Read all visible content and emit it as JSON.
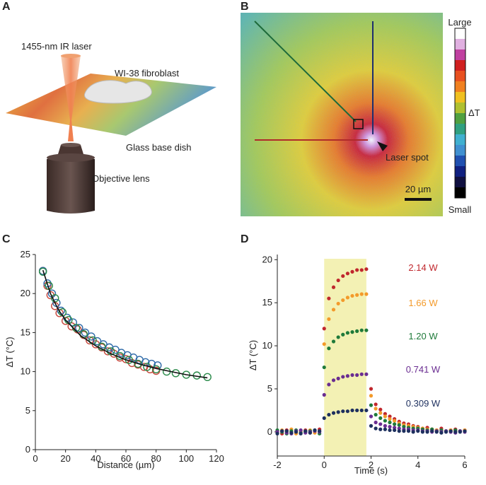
{
  "panel_labels": [
    "A",
    "B",
    "C",
    "D"
  ],
  "panel_a": {
    "laser": "1455-nm IR laser",
    "cell": "WI-38 fibroblast",
    "dish": "Glass base dish",
    "lens": "Objective lens"
  },
  "panel_b": {
    "top": "Large",
    "bottom": "Small",
    "colorbar_label": "ΔT",
    "spot": "Laser spot",
    "scale": "20 µm"
  },
  "chart_data": [
    {
      "type": "scatter",
      "xlabel": "Distance (µm)",
      "ylabel": "ΔT (°C)",
      "xlim": [
        0,
        120
      ],
      "ylim": [
        0,
        25
      ],
      "xticks": [
        0,
        20,
        40,
        60,
        80,
        100,
        120
      ],
      "yticks": [
        0,
        5,
        10,
        15,
        20,
        25
      ],
      "series": [
        {
          "color": "#c8453a",
          "marker": "circle",
          "x": [
            5,
            8,
            10,
            13,
            16,
            20,
            24,
            28,
            32,
            36,
            40,
            44,
            48,
            52,
            56,
            60,
            64,
            68,
            72,
            76,
            80
          ],
          "values": [
            22.9,
            21,
            19.8,
            18.4,
            17.5,
            16.5,
            15.8,
            15.4,
            14.7,
            14,
            13.5,
            13.1,
            12.6,
            12.3,
            11.8,
            11.6,
            11.1,
            10.9,
            10.6,
            10.3,
            10.1
          ]
        },
        {
          "color": "#2e6aa8",
          "marker": "circle",
          "x": [
            5,
            8,
            11,
            14,
            17,
            21,
            25,
            29,
            33,
            37,
            41,
            45,
            49,
            53,
            57,
            61,
            65,
            69,
            73,
            77,
            81
          ],
          "values": [
            22.9,
            21.3,
            20,
            18.8,
            17.8,
            16.9,
            16.3,
            15.6,
            15,
            14.5,
            13.9,
            13.5,
            13.1,
            12.8,
            12.4,
            12.1,
            11.8,
            11.5,
            11.2,
            11,
            10.8
          ]
        },
        {
          "color": "#2a8a4a",
          "marker": "circle",
          "x": [
            5,
            9,
            13,
            18,
            22,
            27,
            32,
            38,
            44,
            50,
            56,
            62,
            68,
            74,
            80,
            87,
            93,
            100,
            107,
            114
          ],
          "values": [
            22.8,
            21,
            19.4,
            17.6,
            16.6,
            15.6,
            14.8,
            14,
            13.2,
            12.6,
            12,
            11.5,
            11,
            10.6,
            10.3,
            10,
            9.8,
            9.6,
            9.5,
            9.3
          ]
        },
        {
          "color": "#111111",
          "marker": "line",
          "x": [
            5,
            10,
            15,
            20,
            30,
            40,
            50,
            60,
            70,
            80,
            90,
            100,
            114
          ],
          "values": [
            23,
            20,
            18,
            16.6,
            14.6,
            13.3,
            12.3,
            11.5,
            10.9,
            10.4,
            10,
            9.6,
            9.2
          ]
        }
      ]
    },
    {
      "type": "scatter",
      "xlabel": "Time (s)",
      "ylabel": "ΔT (°C)",
      "xlim": [
        -2,
        6
      ],
      "ylim": [
        -2.8,
        20.6
      ],
      "xticks": [
        -2,
        0,
        2,
        4,
        6
      ],
      "yticks": [
        0,
        5,
        10,
        15,
        20
      ],
      "highlight_x": [
        0,
        1.8
      ],
      "highlight_color": "#f3f1b4",
      "x": [
        -2,
        -1.8,
        -1.6,
        -1.4,
        -1.2,
        -1,
        -0.8,
        -0.6,
        -0.4,
        -0.2,
        0,
        0.2,
        0.4,
        0.6,
        0.8,
        1,
        1.2,
        1.4,
        1.6,
        1.8,
        2,
        2.2,
        2.4,
        2.6,
        2.8,
        3,
        3.2,
        3.4,
        3.6,
        3.8,
        4,
        4.2,
        4.4,
        4.6,
        4.8,
        5,
        5.2,
        5.4,
        5.6,
        5.8,
        6
      ],
      "series": [
        {
          "name": "2.14 W",
          "color": "#c0272d",
          "marker": "dot",
          "values": [
            0.1,
            -0.2,
            0.2,
            0,
            -0.1,
            0.1,
            0.2,
            -0.1,
            0,
            0.3,
            12,
            15.5,
            16.8,
            17.6,
            18.1,
            18.4,
            18.6,
            18.8,
            18.8,
            18.9,
            5.0,
            3.2,
            2.6,
            2.1,
            1.8,
            1.5,
            1.2,
            1.0,
            0.9,
            0.7,
            0.6,
            0.4,
            0.5,
            0.3,
            0.2,
            0.4,
            0.1,
            0.2,
            0.3,
            0.1,
            0.2
          ]
        },
        {
          "name": "1.66 W",
          "color": "#f39a2a",
          "marker": "dot",
          "values": [
            -0.1,
            0.2,
            0,
            0.3,
            -0.2,
            0,
            0.1,
            0.2,
            -0.1,
            0.1,
            10.2,
            13.1,
            14.2,
            14.9,
            15.3,
            15.6,
            15.8,
            15.9,
            16.0,
            16.0,
            4.2,
            2.7,
            2.2,
            1.8,
            1.5,
            1.3,
            1.0,
            0.8,
            0.7,
            0.6,
            0.5,
            0.4,
            0.3,
            0.3,
            0.2,
            0.2,
            0.1,
            0.2,
            0.1,
            0.1,
            0.2
          ]
        },
        {
          "name": "1.20 W",
          "color": "#1f7a3a",
          "marker": "dot",
          "values": [
            0.2,
            0,
            -0.2,
            0.1,
            0.2,
            -0.1,
            0,
            0.1,
            0.2,
            -0.2,
            7.5,
            9.7,
            10.5,
            11.0,
            11.3,
            11.5,
            11.6,
            11.7,
            11.8,
            11.8,
            3.1,
            2.0,
            1.6,
            1.3,
            1.1,
            0.9,
            0.8,
            0.6,
            0.5,
            0.4,
            0.4,
            0.3,
            0.2,
            0.3,
            0.1,
            0.2,
            0.1,
            0,
            0.2,
            0.1,
            0
          ]
        },
        {
          "name": "0.741 W",
          "color": "#6a2d91",
          "marker": "dot",
          "values": [
            0,
            0.1,
            -0.1,
            -0.2,
            0.1,
            0.2,
            -0.1,
            0,
            0.1,
            0,
            4.3,
            5.5,
            6.0,
            6.2,
            6.4,
            6.5,
            6.6,
            6.6,
            6.7,
            6.7,
            1.8,
            1.1,
            0.9,
            0.7,
            0.6,
            0.5,
            0.4,
            0.3,
            0.3,
            0.2,
            0.2,
            0.1,
            0.1,
            0,
            0.1,
            0,
            0.1,
            0,
            -0.1,
            0.1,
            0
          ]
        },
        {
          "name": "0.309 W",
          "color": "#1d2f5e",
          "marker": "dot",
          "values": [
            -0.2,
            0.1,
            0.1,
            -0.1,
            0,
            -0.2,
            0.1,
            -0.1,
            0.2,
            0.1,
            1.6,
            2.0,
            2.2,
            2.3,
            2.4,
            2.4,
            2.5,
            2.5,
            2.5,
            2.5,
            0.7,
            0.4,
            0.3,
            0.3,
            0.2,
            0.2,
            0.1,
            0.1,
            0.1,
            0,
            0.1,
            0,
            0,
            0.1,
            0,
            -0.1,
            0,
            0.1,
            0,
            0,
            0.1
          ]
        }
      ]
    }
  ]
}
